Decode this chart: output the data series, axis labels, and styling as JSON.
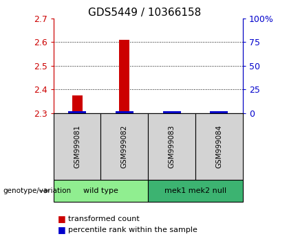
{
  "title": "GDS5449 / 10366158",
  "samples": [
    "GSM999081",
    "GSM999082",
    "GSM999083",
    "GSM999084"
  ],
  "red_values": [
    2.375,
    2.61,
    2.3,
    2.3
  ],
  "ylim": [
    2.3,
    2.7
  ],
  "yticks_left": [
    2.3,
    2.4,
    2.5,
    2.6,
    2.7
  ],
  "yticks_right": [
    0,
    25,
    50,
    75,
    100
  ],
  "ytick_right_labels": [
    "0",
    "25",
    "50",
    "75",
    "100%"
  ],
  "groups": [
    {
      "label": "wild type",
      "samples": [
        0,
        1
      ],
      "color": "#90EE90"
    },
    {
      "label": "mek1 mek2 null",
      "samples": [
        2,
        3
      ],
      "color": "#3CB371"
    }
  ],
  "group_label": "genotype/variation",
  "legend_red": "transformed count",
  "legend_blue": "percentile rank within the sample",
  "bg_color": "#D3D3D3",
  "plot_bg": "#FFFFFF",
  "left_color": "#CC0000",
  "blue_color": "#0000CC",
  "title_fontsize": 11,
  "tick_fontsize": 9,
  "legend_fontsize": 8
}
